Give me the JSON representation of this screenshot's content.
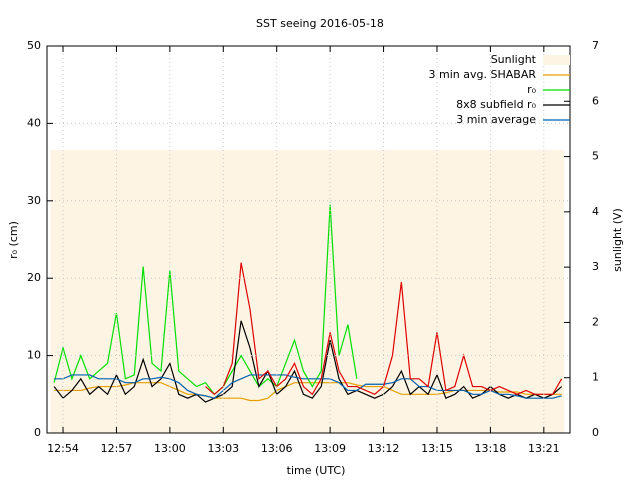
{
  "chart_data": {
    "type": "line",
    "title": "SST seeing 2016-05-18",
    "xlabel": "time (UTC)",
    "ylabel": "r₀ (cm)",
    "y2label": "sunlight (V)",
    "x": [
      773.5,
      774,
      774.5,
      775,
      775.5,
      776,
      776.5,
      777,
      777.5,
      778,
      778.5,
      779,
      779.5,
      780,
      780.5,
      781,
      781.5,
      782,
      782.5,
      783,
      783.5,
      784,
      784.5,
      785,
      785.5,
      786,
      786.5,
      787,
      787.5,
      788,
      788.5,
      789,
      789.5,
      790,
      790.5,
      791,
      791.5,
      792,
      792.5,
      793,
      793.5,
      794,
      794.5,
      795,
      795.5,
      796,
      796.5,
      797,
      797.5,
      798,
      798.5,
      799,
      799.5,
      800,
      800.5,
      801,
      801.5,
      802
    ],
    "xlim": [
      773.1,
      802.47
    ],
    "xticks": [
      {
        "value": 774,
        "label": "12:54"
      },
      {
        "value": 777,
        "label": "12:57"
      },
      {
        "value": 780,
        "label": "13:00"
      },
      {
        "value": 783,
        "label": "13:03"
      },
      {
        "value": 786,
        "label": "13:06"
      },
      {
        "value": 789,
        "label": "13:09"
      },
      {
        "value": 792,
        "label": "13:12"
      },
      {
        "value": 795,
        "label": "13:15"
      },
      {
        "value": 798,
        "label": "13:18"
      },
      {
        "value": 801,
        "label": "13:21"
      }
    ],
    "ylim": [
      0,
      50
    ],
    "yticks": [
      0,
      10,
      20,
      30,
      40,
      50
    ],
    "y2lim": [
      0,
      7
    ],
    "y2ticks": [
      0,
      1,
      2,
      3,
      4,
      5,
      6,
      7
    ],
    "grid": true,
    "legend": "top-right",
    "series": [
      {
        "name": "Sunlight",
        "color": "#fdf4e3",
        "kind": "area",
        "axis": "y2",
        "x": [
          773.3,
          802.15
        ],
        "values": [
          5.12,
          5.12
        ]
      },
      {
        "name": "3 min avg. SHABAR",
        "color": "#e69f00",
        "values": [
          5.5,
          5.5,
          5.5,
          5.5,
          5.8,
          6,
          6,
          6,
          6.2,
          6.5,
          6.5,
          6.5,
          6.5,
          6,
          5.5,
          5,
          5,
          4.8,
          4.5,
          4.5,
          4.5,
          4.5,
          4.2,
          4.2,
          4.5,
          5.5,
          6,
          6.5,
          6.5,
          6.5,
          6.5,
          6.5,
          6.5,
          6.5,
          6.2,
          6,
          6,
          6,
          5.5,
          5,
          5,
          5,
          5,
          5,
          5.2,
          5.5,
          5.5,
          5.5,
          5.5,
          5.5,
          5.3,
          5.3,
          5.3,
          5,
          5,
          5,
          5,
          5
        ]
      },
      {
        "name": "r₀",
        "color": "#00e000",
        "values": [
          6.5,
          11,
          7,
          10,
          7,
          8,
          9,
          15.5,
          7,
          7.5,
          21.5,
          9,
          8,
          21,
          8,
          7,
          6,
          6.5,
          5,
          6,
          8,
          10,
          8,
          6,
          7,
          6,
          9,
          12,
          8,
          6,
          8,
          29.5,
          10,
          14,
          7,
          null,
          null,
          null,
          null,
          null,
          null,
          null,
          null,
          null,
          null,
          null,
          null,
          null,
          null,
          null,
          null,
          null,
          null,
          null,
          null,
          null,
          null,
          null
        ]
      },
      {
        "name": "8x8 subfield r₀",
        "color": "#000000",
        "values": [
          6,
          4.5,
          5.5,
          7,
          5,
          6,
          5,
          7.5,
          5,
          6,
          9.5,
          6,
          7,
          9,
          5,
          4.5,
          5,
          4,
          4.5,
          5,
          6,
          14.5,
          11,
          6,
          8,
          5,
          6,
          8,
          5,
          4.5,
          6,
          12,
          7,
          5,
          5.5,
          5,
          4.5,
          5,
          6,
          8,
          5,
          6,
          5,
          7.5,
          4.5,
          5,
          6,
          4.5,
          5,
          6,
          5,
          4.5,
          5,
          4.5,
          5,
          4.5,
          5,
          6
        ]
      },
      {
        "name": "3 min average",
        "color": "#0060b0",
        "values": [
          7,
          7,
          7.5,
          7.5,
          7.5,
          7,
          7,
          7,
          6.5,
          6.5,
          7,
          7,
          7.2,
          7,
          6.5,
          5.5,
          5,
          4.8,
          4.5,
          5.5,
          6.5,
          7,
          7.5,
          7.5,
          7.5,
          7.5,
          7.5,
          7.2,
          7,
          7,
          7,
          7,
          6.5,
          5.5,
          5.5,
          6.3,
          6.3,
          6.3,
          6.5,
          7,
          7,
          6,
          6,
          5.5,
          5.5,
          5.5,
          5.5,
          5,
          5,
          5.5,
          5,
          5,
          4.8,
          4.5,
          4.5,
          4.5,
          4.5,
          4.8
        ]
      },
      {
        "color": "#e00000",
        "values": [
          null,
          null,
          null,
          null,
          null,
          null,
          null,
          null,
          null,
          null,
          null,
          null,
          null,
          null,
          null,
          null,
          null,
          6,
          5,
          6,
          9,
          22,
          16,
          7,
          8,
          6,
          7,
          9,
          6,
          5,
          7,
          13,
          8,
          6,
          6,
          5.5,
          5,
          6,
          10,
          19.5,
          7,
          7,
          6,
          13,
          5.5,
          6,
          10,
          6,
          6,
          5.5,
          6,
          5.5,
          5,
          5.5,
          5,
          5,
          5,
          7
        ]
      }
    ]
  }
}
